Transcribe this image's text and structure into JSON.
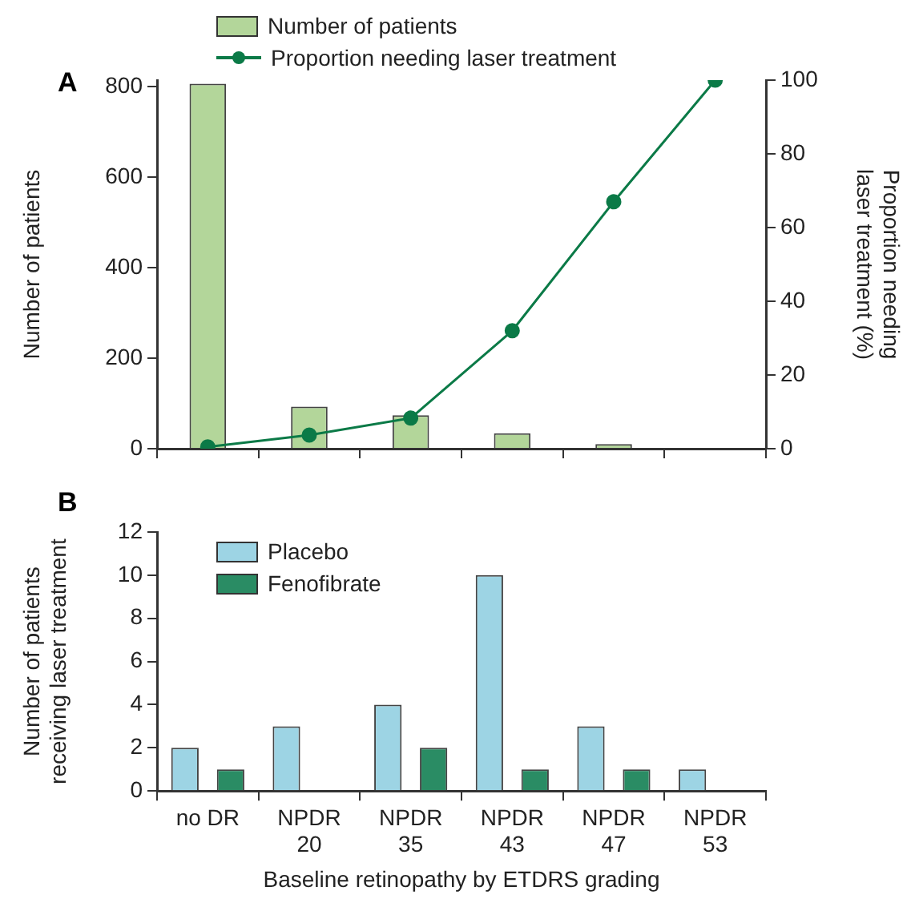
{
  "chart_data": [
    {
      "type": "bar",
      "title": "A",
      "categories": [
        null,
        null,
        null,
        null,
        null,
        null
      ],
      "ylabel": "Number of patients",
      "y2label": "Proportion needing\nlaser treatment (%)",
      "series": [
        {
          "name": "Number of patients",
          "color": "#b3d69a",
          "values": [
            807,
            93,
            74,
            34,
            10,
            null
          ]
        },
        {
          "name": "Proportion needing laser treatment",
          "type": "line",
          "axis": "y2",
          "color": "#0b7a47",
          "values": [
            0.5,
            3.7,
            8.3,
            32,
            67,
            100
          ]
        }
      ],
      "ylim": [
        0,
        815
      ],
      "yticks": [
        0,
        200,
        400,
        600,
        800
      ],
      "y2lim": [
        0,
        100
      ],
      "y2ticks": [
        0,
        20,
        40,
        60,
        80,
        100
      ],
      "grid": false,
      "legend": "top",
      "tick_labels": "y",
      "marker": "circle"
    },
    {
      "type": "bar",
      "title": "B",
      "categories": [
        "no DR",
        "NPDR\n20",
        "NPDR\n35",
        "NPDR\n43",
        "NPDR\n47",
        "NPDR\n53"
      ],
      "xlabel": "Baseline retinopathy by ETDRS grading",
      "ylabel": "Number of patients\nreceiving laser treatment",
      "series": [
        {
          "name": "Placebo",
          "color": "#9dd4e4",
          "values": [
            2,
            3,
            4,
            10,
            3,
            1
          ]
        },
        {
          "name": "Fenofibrate",
          "color": "#2a8c64",
          "values": [
            1,
            0,
            2,
            1,
            1,
            0
          ]
        }
      ],
      "ylim": [
        0,
        12
      ],
      "yticks": [
        0,
        2,
        4,
        6,
        8,
        10,
        12
      ],
      "grid": false,
      "legend": "top left"
    }
  ]
}
